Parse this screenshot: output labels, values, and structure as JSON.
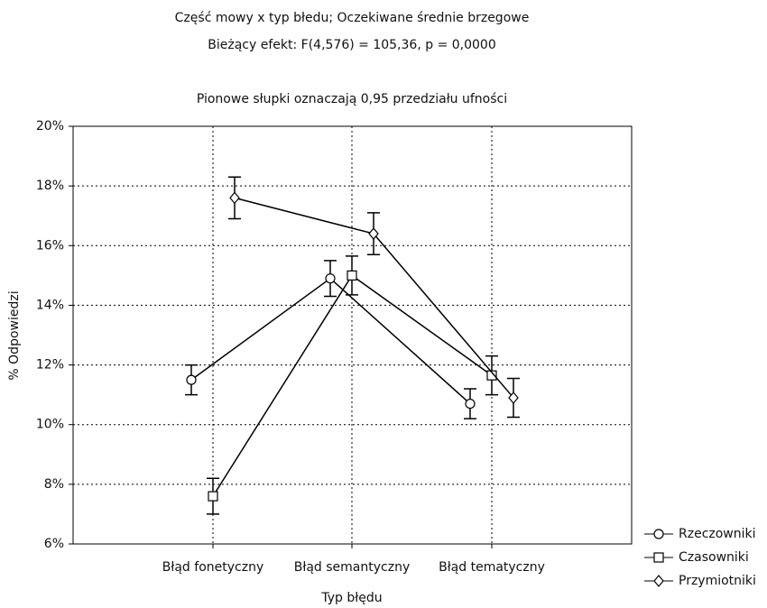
{
  "chart_data": {
    "type": "line",
    "title": "Część mowy x typ błedu; Oczekiwane średnie brzegowe",
    "subtitle": "Bieżący efekt: F(4,576) = 105,36, p = 0,0000",
    "annotation": "Pionowe słupki oznaczają 0,95 przedziału ufności",
    "x_label": "Typ błędu",
    "y_label": "% Odpowiedzi",
    "categories": [
      "Błąd fonetyczny",
      "Błąd semantyczny",
      "Błąd tematyczny"
    ],
    "series": [
      {
        "name": "Rzeczowniki",
        "color": "#000000",
        "marker": "circle",
        "values": [
          11.5,
          14.9,
          10.7
        ],
        "errors": [
          0.5,
          0.6,
          0.5
        ]
      },
      {
        "name": "Czasowniki",
        "color": "#000000",
        "marker": "square",
        "values": [
          7.6,
          15.0,
          11.65
        ],
        "errors": [
          0.6,
          0.65,
          0.65
        ]
      },
      {
        "name": "Przymiotniki",
        "color": "#000000",
        "marker": "diamond",
        "values": [
          17.6,
          16.4,
          10.9
        ],
        "errors": [
          0.7,
          0.7,
          0.65
        ]
      }
    ],
    "ylim": [
      6,
      20
    ],
    "yticks": [
      {
        "value": 6,
        "label": "6%"
      },
      {
        "value": 8,
        "label": "8%"
      },
      {
        "value": 10,
        "label": "10%"
      },
      {
        "value": 12,
        "label": "12%"
      },
      {
        "value": 14,
        "label": "14%"
      },
      {
        "value": 16,
        "label": "16%"
      },
      {
        "value": 18,
        "label": "18%"
      },
      {
        "value": 20,
        "label": "20%"
      }
    ],
    "grid": true,
    "legend": "bottom-right"
  }
}
